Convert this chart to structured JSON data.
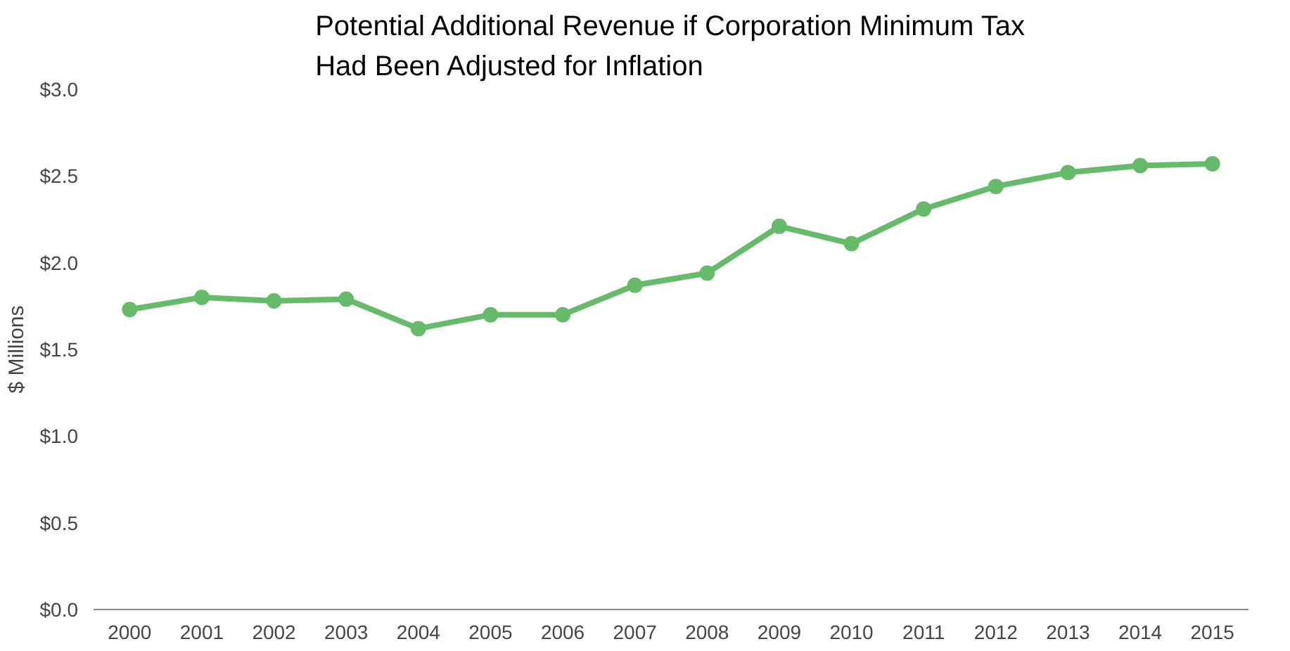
{
  "chart_data": {
    "type": "line",
    "title": "Potential Additional Revenue if Corporation Minimum Tax\nHad Been Adjusted for Inflation",
    "ylabel": "$ Millions",
    "categories": [
      "2000",
      "2001",
      "2002",
      "2003",
      "2004",
      "2005",
      "2006",
      "2007",
      "2008",
      "2009",
      "2010",
      "2011",
      "2012",
      "2013",
      "2014",
      "2015"
    ],
    "series": [
      {
        "color": "#66bb6a",
        "values": [
          1.73,
          1.8,
          1.78,
          1.79,
          1.62,
          1.7,
          1.7,
          1.87,
          1.94,
          2.21,
          2.11,
          2.31,
          2.44,
          2.52,
          2.56,
          2.57
        ]
      }
    ],
    "ylim": [
      0,
      3
    ],
    "yticks": [
      {
        "value": 0,
        "label": "$0.0"
      },
      {
        "value": 0.5,
        "label": "$0.5"
      },
      {
        "value": 1,
        "label": "$1.0"
      },
      {
        "value": 1.5,
        "label": "$1.5"
      },
      {
        "value": 2,
        "label": "$2.0"
      },
      {
        "value": 2.5,
        "label": "$2.5"
      },
      {
        "value": 3,
        "label": "$3.0"
      }
    ],
    "grid": false,
    "marker": "circle",
    "line_style": "solid"
  }
}
